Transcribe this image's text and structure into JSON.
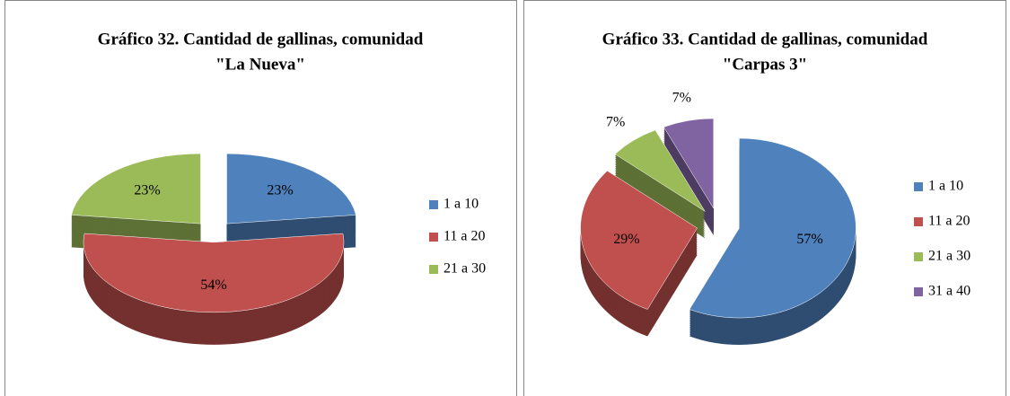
{
  "chart_data": [
    {
      "type": "pie",
      "title": [
        "Gráfico 32. Cantidad de gallinas, comunidad",
        "\"La Nueva\""
      ],
      "categories": [
        "1 a 10",
        "11 a 20",
        "21 a 30"
      ],
      "values": [
        23,
        54,
        23
      ],
      "value_labels": [
        "23%",
        "54%",
        "23%"
      ],
      "colors": [
        "#4f81bd",
        "#c0504d",
        "#9bbb59"
      ],
      "legend": "right"
    },
    {
      "type": "pie",
      "title": [
        "Gráfico 33. Cantidad de gallinas, comunidad",
        "\"Carpas 3\""
      ],
      "categories": [
        "1 a 10",
        "11 a 20",
        "21 a 30",
        "31 a 40"
      ],
      "values": [
        57,
        29,
        7,
        7
      ],
      "value_labels": [
        "57%",
        "29%",
        "7%",
        "7%"
      ],
      "colors": [
        "#4f81bd",
        "#c0504d",
        "#9bbb59",
        "#8064a2"
      ],
      "legend": "right"
    }
  ]
}
